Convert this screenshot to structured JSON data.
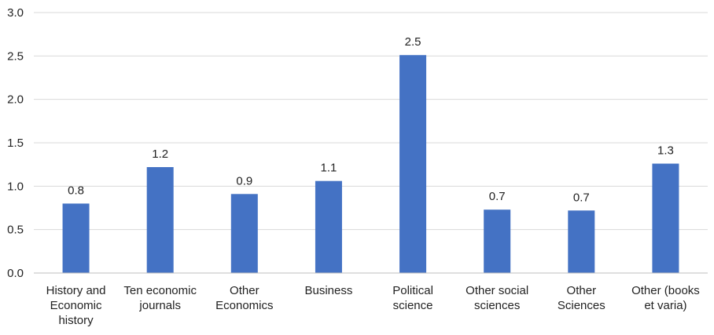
{
  "chart_data": {
    "type": "bar",
    "categories": [
      [
        "History and",
        "Economic",
        "history"
      ],
      [
        "Ten economic",
        "journals"
      ],
      [
        "Other",
        "Economics"
      ],
      [
        "Business"
      ],
      [
        "Political",
        "science"
      ],
      [
        "Other social",
        "sciences"
      ],
      [
        "Other",
        "Sciences"
      ],
      [
        "Other (books",
        "et varia)"
      ]
    ],
    "values": [
      0.8,
      1.22,
      0.91,
      1.06,
      2.51,
      0.73,
      0.72,
      1.26
    ],
    "data_labels": [
      "0.8",
      "1.2",
      "0.9",
      "1.1",
      "2.5",
      "0.7",
      "0.7",
      "1.3"
    ],
    "yticks": [
      "0.0",
      "0.5",
      "1.0",
      "1.5",
      "2.0",
      "2.5",
      "3.0"
    ],
    "ylim": [
      0,
      3
    ],
    "grid": true,
    "legend": "none",
    "bar_color": "#4472c4",
    "title": "",
    "xlabel": "",
    "ylabel": ""
  }
}
